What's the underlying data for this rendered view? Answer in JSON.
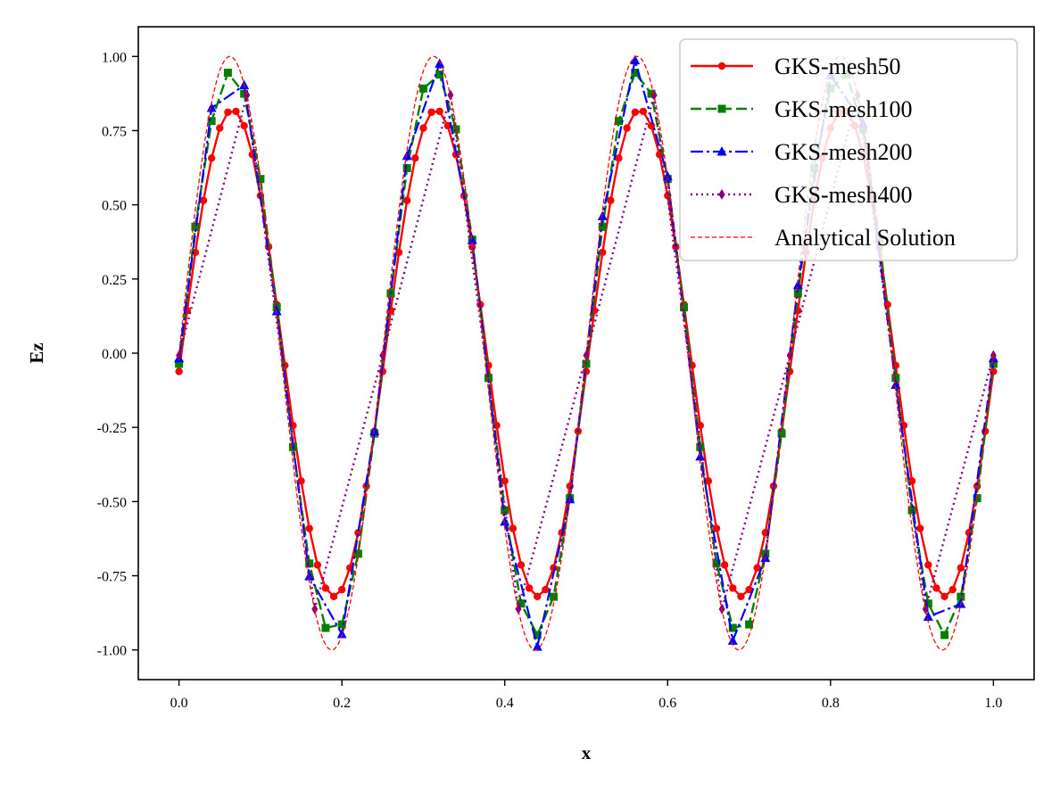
{
  "chart_data": {
    "type": "line",
    "xlabel": "x",
    "ylabel": "Ez",
    "xlim": [
      -0.05,
      1.05
    ],
    "ylim": [
      -1.1,
      1.1
    ],
    "x_ticks": [
      0.0,
      0.2,
      0.4,
      0.6,
      0.8,
      1.0
    ],
    "x_tick_labels": [
      "0.0",
      "0.2",
      "0.4",
      "0.6",
      "0.8",
      "1.0"
    ],
    "y_ticks": [
      1.0,
      0.75,
      0.5,
      0.25,
      0.0,
      -0.25,
      -0.5,
      -0.75,
      -1.0
    ],
    "y_tick_labels": [
      "1.00",
      "0.75",
      "0.50",
      "0.25",
      "0.00",
      "-0.25",
      "-0.50",
      "-0.75",
      "-1.00"
    ],
    "legend_position": "top-right",
    "grid": false,
    "wave": {
      "amplitude": 1.0,
      "wavelength": 0.25,
      "phase_zero_x": 0.0
    },
    "series": [
      {
        "name": "GKS-mesh50",
        "color": "#ff0000",
        "line": "solid",
        "marker": "circle",
        "points": 100,
        "amplitude": 0.82,
        "x_shift": 0.003,
        "offset": 0.0
      },
      {
        "name": "GKS-mesh100",
        "color": "#008000",
        "line": "dashed",
        "marker": "square",
        "points": 50,
        "amplitude": 0.95,
        "x_shift": 0.0015,
        "offset": 0.0
      },
      {
        "name": "GKS-mesh200",
        "color": "#0000ff",
        "line": "dashdot",
        "marker": "triangle",
        "points": 25,
        "amplitude": 0.99,
        "x_shift": 0.0007,
        "offset": 0.0
      },
      {
        "name": "GKS-mesh400",
        "color": "#800080",
        "line": "dotted",
        "marker": "diamond",
        "points": 12,
        "amplitude": 1.0,
        "x_shift": 0.0003,
        "offset": 0.0
      },
      {
        "name": "Analytical Solution",
        "color": "#ff0000",
        "line": "thin-dashed",
        "marker": "none",
        "points": 0,
        "amplitude": 1.0,
        "x_shift": 0.0,
        "offset": 0.0
      }
    ]
  }
}
